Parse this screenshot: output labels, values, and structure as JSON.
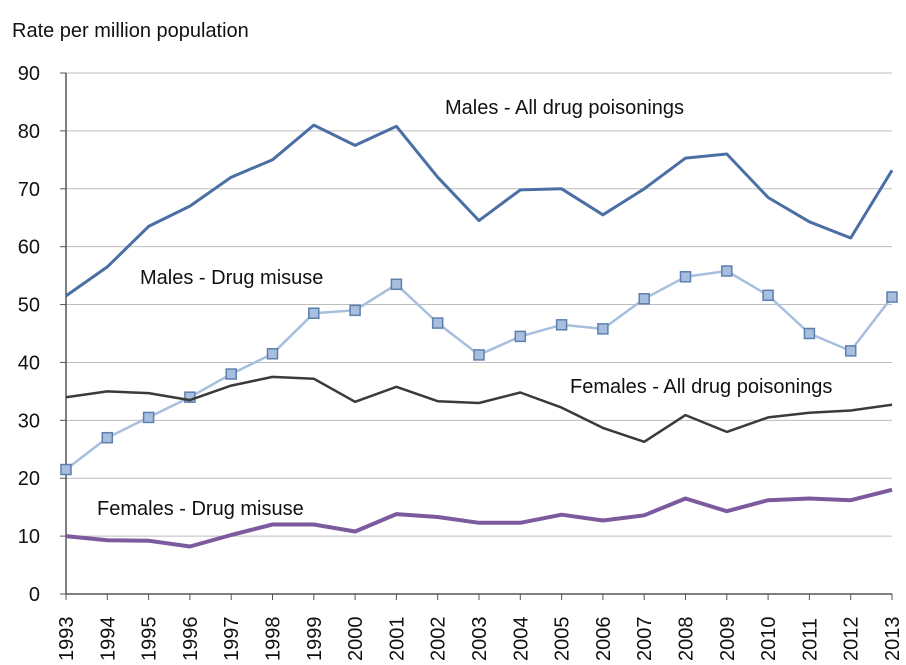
{
  "chart_data": {
    "type": "line",
    "ylabel": "Rate per million population",
    "xlabel": "",
    "ylim": [
      0,
      90
    ],
    "yticks": [
      0,
      10,
      20,
      30,
      40,
      50,
      60,
      70,
      80,
      90
    ],
    "grid": true,
    "x": [
      "1993",
      "1994",
      "1995",
      "1996",
      "1997",
      "1998",
      "1999",
      "2000",
      "2001",
      "2002",
      "2003",
      "2004",
      "2005",
      "2006",
      "2007",
      "2008",
      "2009",
      "2010",
      "2011",
      "2012",
      "2013"
    ],
    "series": [
      {
        "name": "Males - All drug poisonings",
        "color": "#4a6fa5",
        "marker": "none",
        "values": [
          51.5,
          56.5,
          63.5,
          67.0,
          72.0,
          75.0,
          81.0,
          77.5,
          80.8,
          72.0,
          64.5,
          69.8,
          70.0,
          65.5,
          70.0,
          75.3,
          76.0,
          68.5,
          64.3,
          61.5,
          73.2
        ]
      },
      {
        "name": "Males - Drug misuse",
        "color": "#a7bfdf",
        "marker": "square",
        "values": [
          21.5,
          27.0,
          30.5,
          34.0,
          38.0,
          41.5,
          48.5,
          49.0,
          53.5,
          46.8,
          41.3,
          44.5,
          46.5,
          45.8,
          51.0,
          54.8,
          55.8,
          51.6,
          45.0,
          42.0,
          51.3
        ]
      },
      {
        "name": "Females - All drug poisonings",
        "color": "#3a3a3a",
        "marker": "none",
        "values": [
          34.0,
          35.0,
          34.7,
          33.5,
          36.0,
          37.5,
          37.2,
          33.2,
          35.8,
          33.3,
          33.0,
          34.8,
          32.2,
          28.7,
          26.3,
          30.9,
          28.0,
          30.5,
          31.3,
          31.7,
          32.7
        ]
      },
      {
        "name": "Females - Drug misuse",
        "color": "#7b5a9e",
        "marker": "none",
        "values": [
          10.0,
          9.3,
          9.2,
          8.2,
          10.2,
          12.0,
          12.0,
          10.8,
          13.8,
          13.3,
          12.3,
          12.3,
          13.7,
          12.7,
          13.6,
          16.5,
          14.3,
          16.2,
          16.5,
          16.2,
          18.0
        ]
      }
    ]
  }
}
